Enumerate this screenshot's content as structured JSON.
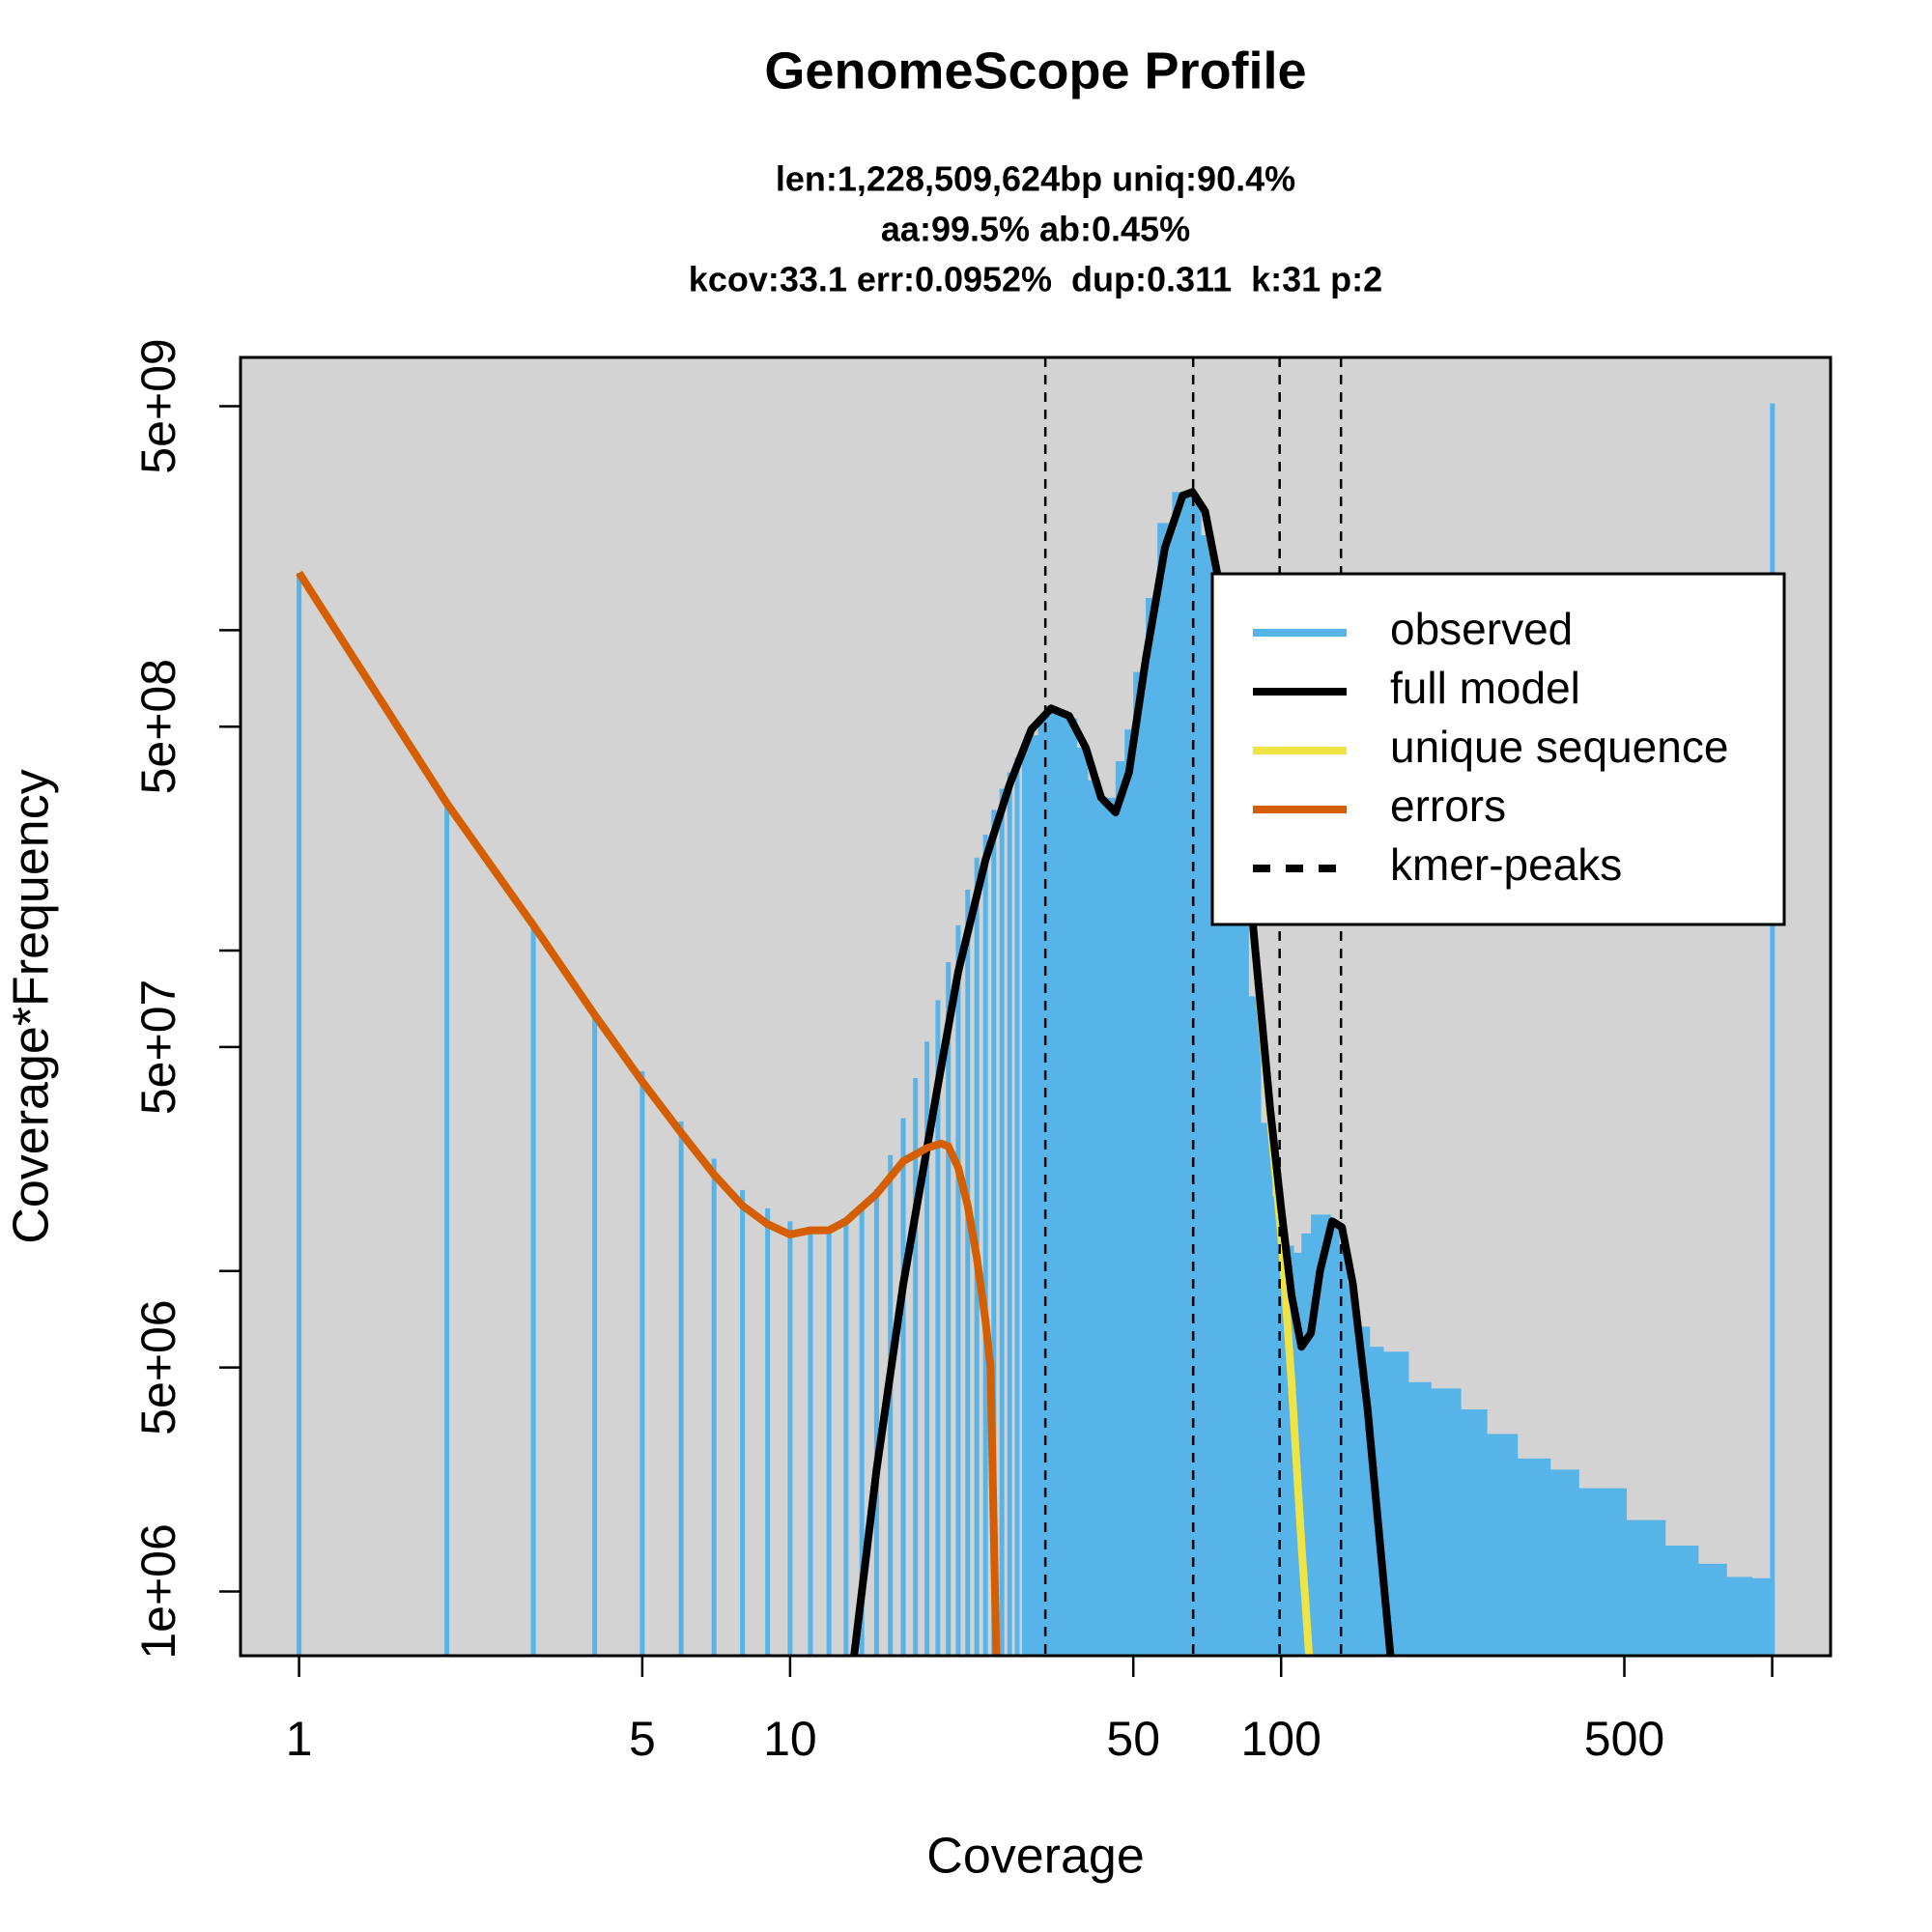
{
  "chart_data": {
    "type": "line",
    "title": "GenomeScope Profile",
    "subtitle": [
      "len:1,228,509,624bp uniq:90.4%",
      "aa:99.5% ab:0.45%",
      "kcov:33.1 err:0.0952%  dup:0.311  k:31 p:2"
    ],
    "x_label": "Coverage",
    "y_label": "Coverage*Frequency",
    "xlog": true,
    "ylog": true,
    "background": "#d3d3d3",
    "legend": "upper right",
    "xlim": [
      0.76,
      1315
    ],
    "ylim": [
      630000,
      7100000000
    ],
    "xticks": [
      1,
      5,
      10,
      50,
      100,
      500,
      {
        "value": 1000,
        "label": null
      }
    ],
    "yticks": [
      {
        "value": 1000000,
        "label": "1e+06"
      },
      {
        "value": 5000000,
        "label": "5e+06"
      },
      {
        "value": 10000000,
        "label": null
      },
      {
        "value": 50000000,
        "label": "5e+07"
      },
      {
        "value": 100000000,
        "label": null
      },
      {
        "value": 500000000,
        "label": "5e+08"
      },
      {
        "value": 1000000000,
        "label": null
      },
      {
        "value": 5000000000,
        "label": "5e+09"
      }
    ],
    "series": [
      {
        "name": "observed",
        "type": "bar",
        "color": "#56B4E9",
        "x": [
          1,
          2,
          3,
          4,
          5,
          6,
          7,
          8,
          9,
          10,
          11,
          12,
          13,
          14,
          15,
          16,
          17,
          18,
          19,
          20,
          21,
          22,
          23,
          24,
          25,
          26,
          27,
          28,
          29,
          30,
          32,
          34,
          36,
          38,
          40,
          42,
          44,
          46,
          48,
          50,
          53,
          56,
          60,
          64,
          68,
          72,
          76,
          80,
          85,
          90,
          95,
          100,
          105,
          110,
          115,
          120,
          125,
          130,
          135,
          140,
          150,
          160,
          180,
          200,
          230,
          260,
          300,
          350,
          400,
          500,
          600,
          700,
          800,
          900,
          990,
          1000
        ],
        "values": [
          1510000000,
          288000000,
          123000000,
          64400000,
          42000000,
          29300000,
          22400000,
          17900000,
          15700000,
          14300000,
          13700000,
          13700000,
          14000000,
          15500000,
          18000000,
          23000000,
          30000000,
          40000000,
          52000000,
          70000000,
          92000000,
          120000000,
          155000000,
          195000000,
          230000000,
          275000000,
          320000000,
          360000000,
          400000000,
          440000000,
          470000000,
          540000000,
          550000000,
          530000000,
          430000000,
          340000000,
          290000000,
          300000000,
          390000000,
          490000000,
          740000000,
          1260000000,
          2160000000,
          2700000000,
          2600000000,
          1980000000,
          1260000000,
          620000000,
          210000000,
          72000000,
          29000000,
          17100000,
          12000000,
          11400000,
          13100000,
          15000000,
          15000000,
          14000000,
          12000000,
          9100000,
          6700000,
          5800000,
          5600000,
          4500000,
          4300000,
          3700000,
          3100000,
          2600000,
          2400000,
          2100000,
          1670000,
          1390000,
          1220000,
          1110000,
          1100000,
          5100000000
        ]
      },
      {
        "name": "unique sequence",
        "type": "line",
        "color": "#F0E442",
        "x": [
          58,
          63,
          66,
          70,
          75,
          80,
          88,
          95,
          100,
          105,
          110,
          114
        ],
        "values": [
          1810000000,
          2630000000,
          2700000000,
          2350000000,
          1370000000,
          560000000,
          110000000,
          30000000,
          13000000,
          4500000,
          1400000,
          630000
        ]
      },
      {
        "name": "full model",
        "type": "line",
        "color": "#000000",
        "x": [
          13.5,
          15,
          17,
          20,
          22,
          25,
          28,
          31,
          34,
          37,
          40,
          43,
          46,
          49,
          53,
          58,
          63,
          66,
          70,
          75,
          80,
          88,
          95,
          100,
          105,
          110,
          115,
          120,
          127,
          133,
          140,
          150,
          160,
          167
        ],
        "values": [
          630000,
          2400000,
          9100000,
          38000000,
          86000000,
          192000000,
          330000000,
          490000000,
          570000000,
          540000000,
          430000000,
          300000000,
          270000000,
          360000000,
          810000000,
          1810000000,
          2630000000,
          2700000000,
          2350000000,
          1370000000,
          560000000,
          112000000,
          32000000,
          15700000,
          8400000,
          5800000,
          6400000,
          10000000,
          14300000,
          13700000,
          9100000,
          3700000,
          1270000,
          630000
        ]
      },
      {
        "name": "errors",
        "type": "line",
        "color": "#D55E00",
        "x": [
          1,
          2,
          3,
          4,
          5,
          6,
          7,
          8,
          9,
          10,
          11,
          12,
          13,
          15,
          17,
          19,
          20.3,
          21,
          22,
          23,
          24,
          25,
          25.6,
          26,
          26.3
        ],
        "values": [
          1510000000,
          288000000,
          120000000,
          63000000,
          39000000,
          27000000,
          20000000,
          16000000,
          14000000,
          13000000,
          13400000,
          13400000,
          14300000,
          17400000,
          22000000,
          24200000,
          25000000,
          24500000,
          21000000,
          16000000,
          11000000,
          7000000,
          5000000,
          1500000,
          630000
        ]
      },
      {
        "name": "kmer-peaks",
        "type": "vline",
        "color": "#000000",
        "dash": true,
        "x": [
          33.1,
          66.2,
          99.3,
          132.4
        ]
      }
    ]
  }
}
